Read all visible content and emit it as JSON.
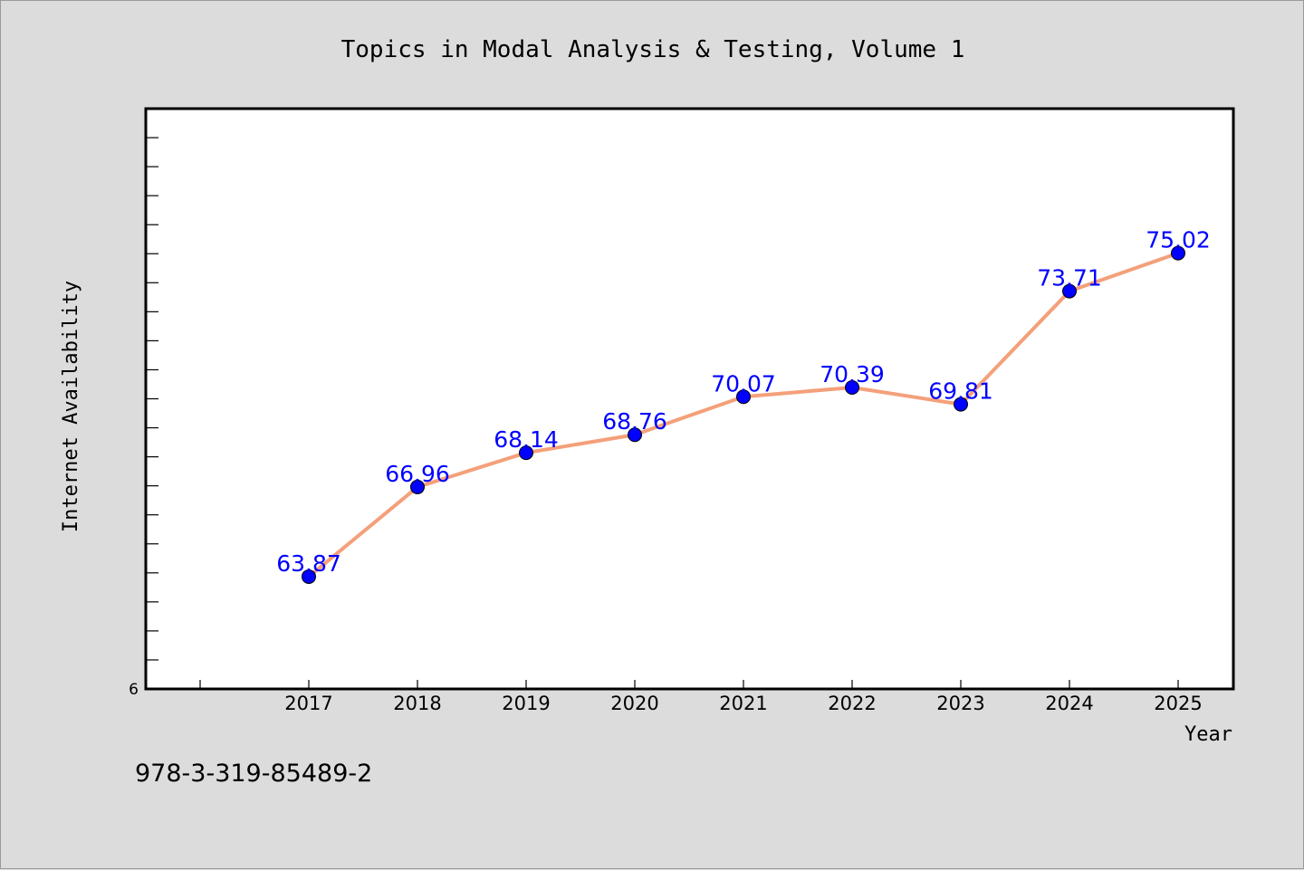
{
  "chart_data": {
    "type": "line",
    "title": "Topics in Modal Analysis & Testing, Volume 1",
    "xlabel": "Year",
    "ylabel": "Internet Availability",
    "x": [
      "2017",
      "2018",
      "2019",
      "2020",
      "2021",
      "2022",
      "2023",
      "2024",
      "2025"
    ],
    "series": [
      {
        "values": [
          63.87,
          66.96,
          68.14,
          68.76,
          70.07,
          70.39,
          69.81,
          73.71,
          75.02
        ],
        "labels": [
          "63.87",
          "66.96",
          "68.14",
          "68.76",
          "70.07",
          "70.39",
          "69.81",
          "73.71",
          "75.02"
        ]
      }
    ],
    "ylim": [
      60.0,
      80.0
    ],
    "y_min_label": "6",
    "grid": false,
    "legend": "none",
    "colors": {
      "line": "#f4a07a",
      "marker": "#0000ff",
      "data_label": "#0000ff",
      "plot_background": "#ffffff",
      "page_background": "#dcdcdc"
    }
  },
  "footer": {
    "isbn": "978-3-319-85489-2"
  }
}
